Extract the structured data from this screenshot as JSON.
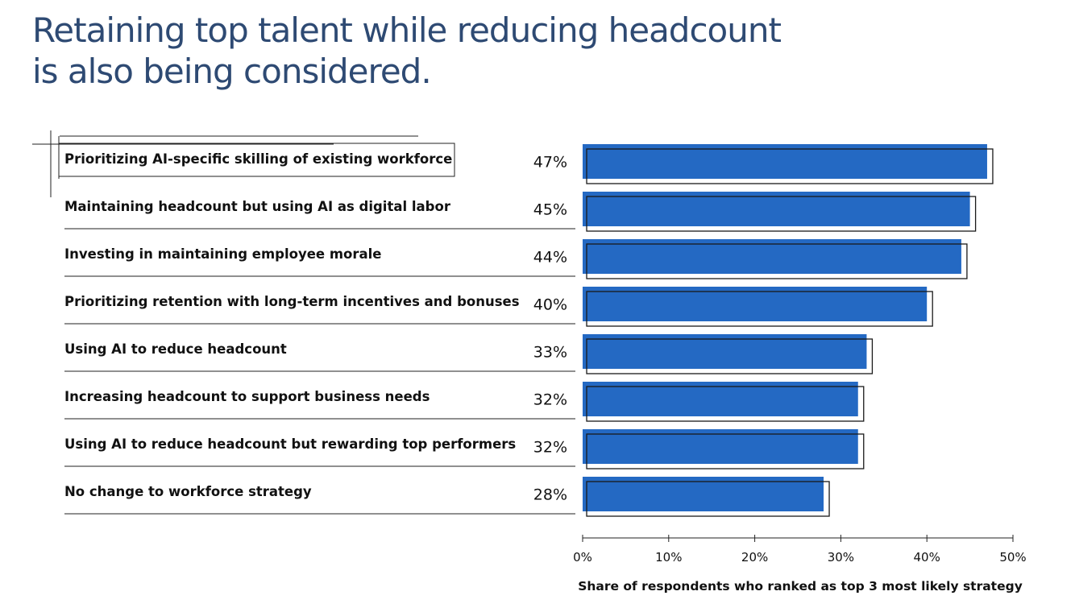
{
  "title_lines": [
    "Retaining top talent while reducing headcount",
    "is also being considered."
  ],
  "colors": {
    "bar": "#2469c3",
    "title": "#2e4a73",
    "outline": "#1a1a1a"
  },
  "chart_data": {
    "type": "bar",
    "orientation": "horizontal",
    "categories": [
      "Prioritizing AI-specific skilling of existing workforce",
      "Maintaining headcount but using AI as digital labor",
      "Investing in maintaining employee morale",
      "Prioritizing retention with long-term incentives and bonuses",
      "Using AI to reduce headcount",
      "Increasing headcount to support business needs",
      "Using AI to reduce headcount but rewarding top performers",
      "No change to workforce strategy"
    ],
    "values": [
      47,
      45,
      44,
      40,
      33,
      32,
      32,
      28
    ],
    "value_labels": [
      "47%",
      "45%",
      "44%",
      "40%",
      "33%",
      "32%",
      "32%",
      "28%"
    ],
    "xlim": [
      0,
      50
    ],
    "xticks": [
      "0%",
      "10%",
      "20%",
      "30%",
      "40%",
      "50%"
    ],
    "xlabel": "Share of respondents who ranked as top 3 most likely strategy",
    "grid": false,
    "legend": "none"
  }
}
